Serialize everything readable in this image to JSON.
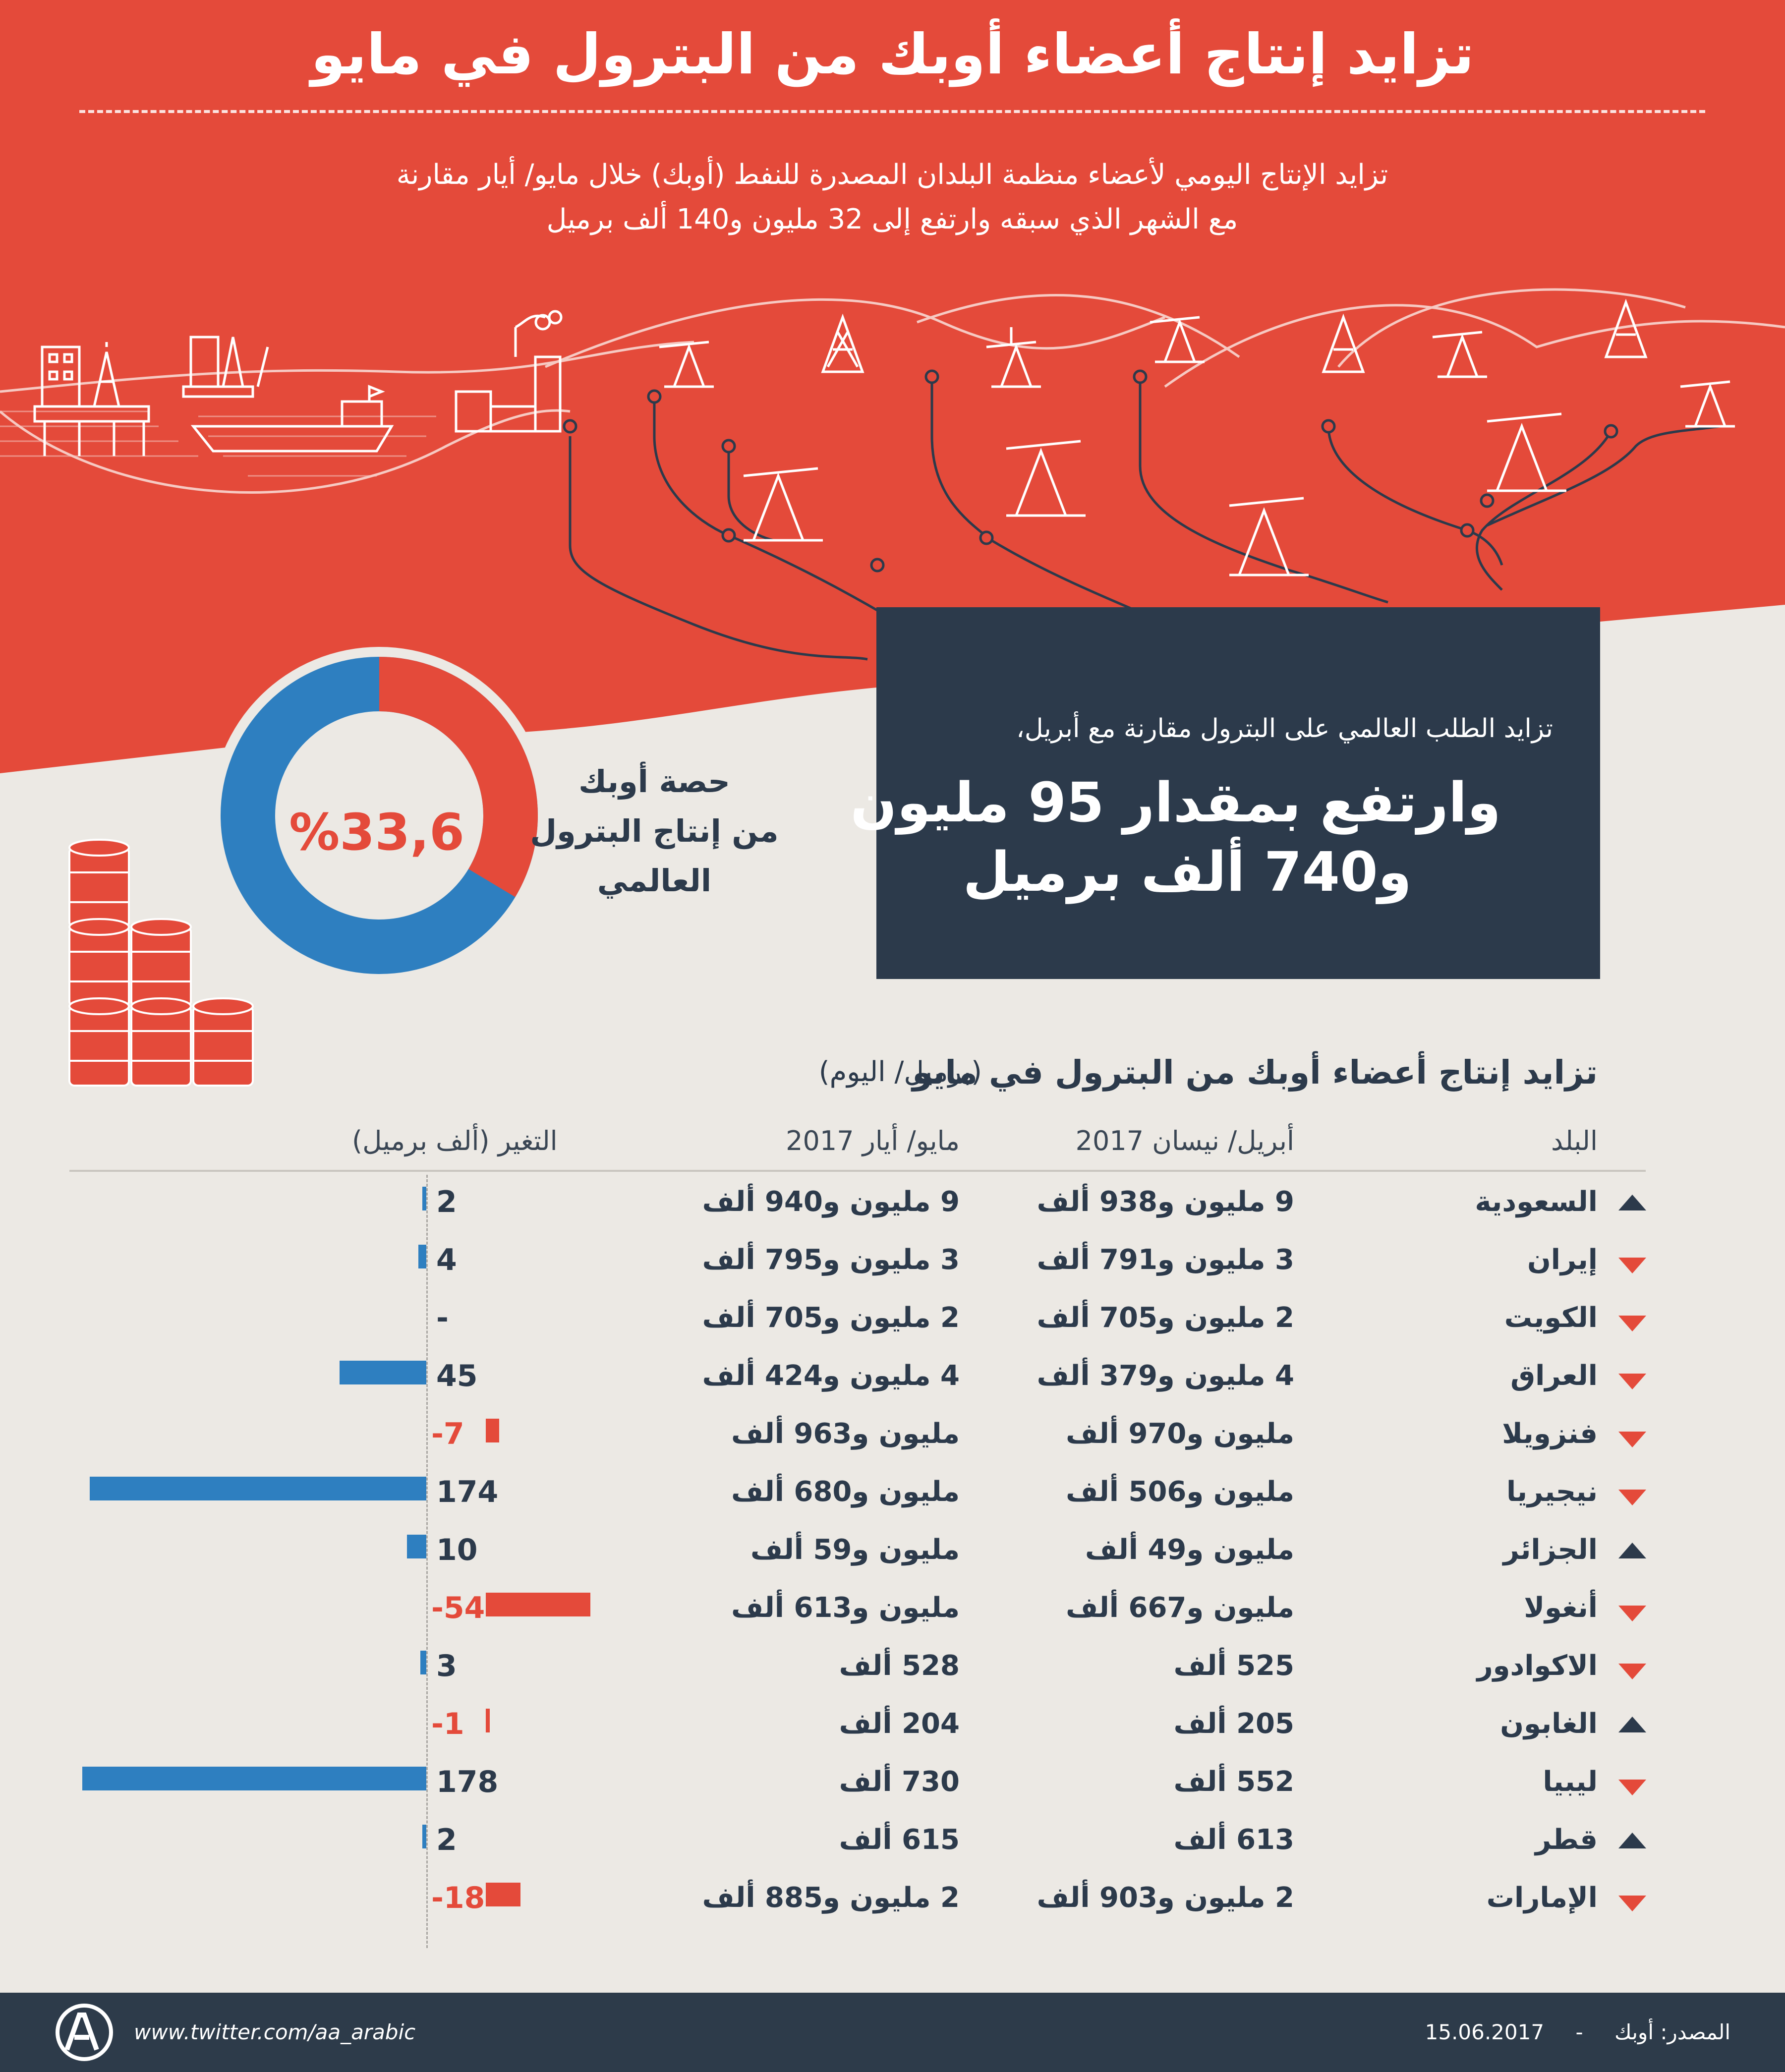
{
  "title": "تزايد إنتاج أعضاء أوبك من البترول في مايو",
  "subtitle_line1": "تزايد الإنتاج اليومي لأعضاء منظمة البلدان المصدرة للنفط (أوبك) خلال مايو/ أيار مقارنة",
  "subtitle_line2": "مع الشهر الذي سبقه وارتفع إلى 32 مليون و140 ألف برميل",
  "demand": {
    "line1": "تزايد الطلب العالمي على البترول مقارنة مع أبريل،",
    "line2": "وارتفع بمقدار 95 مليون",
    "line3": "و740 ألف برميل"
  },
  "share": {
    "percent_label": "%33,6",
    "percent_value": 33.6,
    "line1": "حصة أوبك",
    "line2": "من إنتاج البترول",
    "line3": "العالمي"
  },
  "colors": {
    "red": "#e44a3a",
    "navy": "#2c3a4b",
    "blue": "#2e7fc0",
    "bg": "#ece9e4"
  },
  "table": {
    "title": "تزايد إنتاج أعضاء أوبك من البترول في مايو",
    "unit": "(برميل/ اليوم)",
    "headers": {
      "country": "البلد",
      "april": "أبريل/ نيسان 2017",
      "may": "مايو/ أيار 2017",
      "change": "التغير (ألف برميل)"
    }
  },
  "chart_data": {
    "type": "bar",
    "title": "تزايد إنتاج أعضاء أوبك من البترول في مايو",
    "xlabel": "التغير (ألف برميل)",
    "categories": [
      "السعودية",
      "إيران",
      "الكويت",
      "العراق",
      "فنزويلا",
      "نيجيريا",
      "الجزائر",
      "أنغولا",
      "الاكوادور",
      "الغابون",
      "ليبيا",
      "قطر",
      "الإمارات"
    ],
    "series": [
      {
        "name": "التغير (ألف برميل)",
        "values": [
          2,
          4,
          0,
          45,
          -7,
          174,
          10,
          -54,
          3,
          -1,
          178,
          2,
          -18
        ]
      }
    ],
    "rows": [
      {
        "country": "السعودية",
        "arrow": "up",
        "april": "9 مليون و938 ألف",
        "may": "9 مليون و940 ألف",
        "change": 2,
        "change_label": "2"
      },
      {
        "country": "إيران",
        "arrow": "down",
        "april": "3 مليون و791 ألف",
        "may": "3 مليون و795 ألف",
        "change": 4,
        "change_label": "4"
      },
      {
        "country": "الكويت",
        "arrow": "down",
        "april": "2 مليون و705 ألف",
        "may": "2 مليون و705 ألف",
        "change": 0,
        "change_label": "-"
      },
      {
        "country": "العراق",
        "arrow": "down",
        "april": "4 مليون و379 ألف",
        "may": "4 مليون و424 ألف",
        "change": 45,
        "change_label": "45"
      },
      {
        "country": "فنزويلا",
        "arrow": "down",
        "april": "مليون و970 ألف",
        "may": "مليون و963 ألف",
        "change": -7,
        "change_label": "-7"
      },
      {
        "country": "نيجيريا",
        "arrow": "down",
        "april": "مليون و506 ألف",
        "may": "مليون و680 ألف",
        "change": 174,
        "change_label": "174"
      },
      {
        "country": "الجزائر",
        "arrow": "up",
        "april": "مليون و49 ألف",
        "may": "مليون و59 ألف",
        "change": 10,
        "change_label": "10"
      },
      {
        "country": "أنغولا",
        "arrow": "down",
        "april": "مليون و667 ألف",
        "may": "مليون و613 ألف",
        "change": -54,
        "change_label": "-54"
      },
      {
        "country": "الاكوادور",
        "arrow": "down",
        "april": "525 ألف",
        "may": "528 ألف",
        "change": 3,
        "change_label": "3"
      },
      {
        "country": "الغابون",
        "arrow": "up",
        "april": "205 ألف",
        "may": "204 ألف",
        "change": -1,
        "change_label": "-1"
      },
      {
        "country": "ليبيا",
        "arrow": "down",
        "april": "552 ألف",
        "may": "730 ألف",
        "change": 178,
        "change_label": "178"
      },
      {
        "country": "قطر",
        "arrow": "up",
        "april": "613 ألف",
        "may": "615 ألف",
        "change": 2,
        "change_label": "2"
      },
      {
        "country": "الإمارات",
        "arrow": "down",
        "april": "2 مليون و903 ألف",
        "may": "2 مليون و885 ألف",
        "change": -18,
        "change_label": "-18"
      }
    ]
  },
  "footer": {
    "twitter": "www.twitter.com/aa_arabic",
    "source": "المصدر: أوبك",
    "date": "15.06.2017",
    "separator": "-"
  }
}
